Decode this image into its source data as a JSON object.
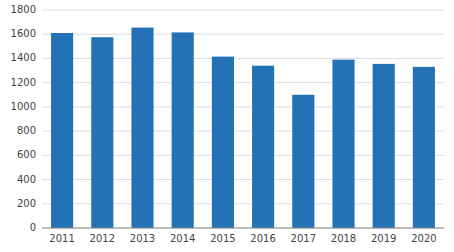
{
  "chart_data": {
    "type": "bar",
    "categories": [
      "2011",
      "2012",
      "2013",
      "2014",
      "2015",
      "2016",
      "2017",
      "2018",
      "2019",
      "2020"
    ],
    "values": [
      1610,
      1575,
      1655,
      1615,
      1415,
      1340,
      1100,
      1390,
      1355,
      1330
    ],
    "color": "#2272b5",
    "ylim": [
      0,
      1800
    ],
    "yticks": [
      0,
      200,
      400,
      600,
      800,
      1000,
      1200,
      1400,
      1600,
      1800
    ],
    "grid": true
  }
}
